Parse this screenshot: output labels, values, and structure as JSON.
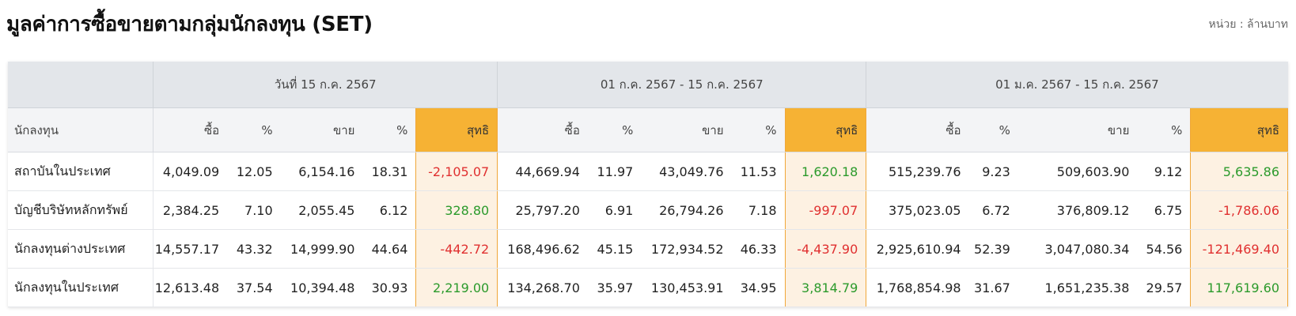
{
  "title": "มูลค่าการซื้อขายตามกลุ่มนักลงทุน (SET)",
  "unit_label": "หน่วย : ล้านบาท",
  "periods": [
    "วันที่ 15 ก.ค. 2567",
    "01 ก.ค. 2567 - 15 ก.ค. 2567",
    "01 ม.ค. 2567 - 15 ก.ค. 2567"
  ],
  "columns": {
    "investor": "นักลงทุน",
    "buy": "ซื้อ",
    "pct": "%",
    "sell": "ขาย",
    "net": "สุทธิ"
  },
  "rows": [
    {
      "investor": "สถาบันในประเทศ",
      "cells": [
        [
          "4,049.09",
          "12.05",
          "6,154.16",
          "18.31",
          "-2,105.07"
        ],
        [
          "44,669.94",
          "11.97",
          "43,049.76",
          "11.53",
          "1,620.18"
        ],
        [
          "515,239.76",
          "9.23",
          "509,603.90",
          "9.12",
          "5,635.86"
        ]
      ]
    },
    {
      "investor": "บัญชีบริษัทหลักทรัพย์",
      "cells": [
        [
          "2,384.25",
          "7.10",
          "2,055.45",
          "6.12",
          "328.80"
        ],
        [
          "25,797.20",
          "6.91",
          "26,794.26",
          "7.18",
          "-997.07"
        ],
        [
          "375,023.05",
          "6.72",
          "376,809.12",
          "6.75",
          "-1,786.06"
        ]
      ]
    },
    {
      "investor": "นักลงทุนต่างประเทศ",
      "cells": [
        [
          "14,557.17",
          "43.32",
          "14,999.90",
          "44.64",
          "-442.72"
        ],
        [
          "168,496.62",
          "45.15",
          "172,934.52",
          "46.33",
          "-4,437.90"
        ],
        [
          "2,925,610.94",
          "52.39",
          "3,047,080.34",
          "54.56",
          "-121,469.40"
        ]
      ]
    },
    {
      "investor": "นักลงทุนในประเทศ",
      "cells": [
        [
          "12,613.48",
          "37.54",
          "10,394.48",
          "30.93",
          "2,219.00"
        ],
        [
          "134,268.70",
          "35.97",
          "130,453.91",
          "34.95",
          "3,814.79"
        ],
        [
          "1,768,854.98",
          "31.67",
          "1,651,235.38",
          "29.57",
          "117,619.60"
        ]
      ]
    }
  ],
  "colors": {
    "net_header_bg": "#f6b234",
    "net_cell_bg": "#fdf1e2",
    "negative": "#e03030",
    "positive": "#2b9a2b",
    "header_bg": "#e3e6ea"
  }
}
